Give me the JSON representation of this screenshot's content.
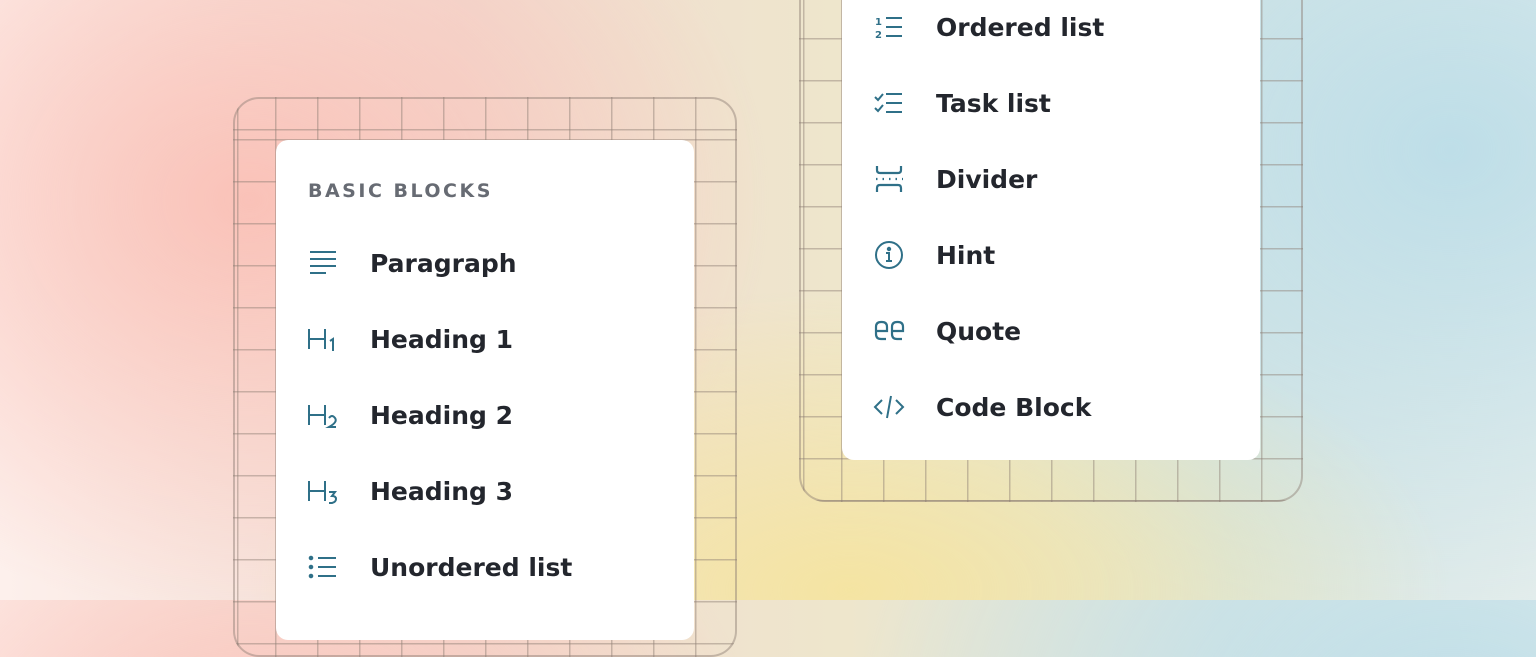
{
  "left_menu": {
    "section_heading": "BASIC BLOCKS",
    "items": [
      {
        "label": "Paragraph",
        "icon": "paragraph-icon"
      },
      {
        "label": "Heading 1",
        "icon": "heading-1-icon"
      },
      {
        "label": "Heading 2",
        "icon": "heading-2-icon"
      },
      {
        "label": "Heading 3",
        "icon": "heading-3-icon"
      },
      {
        "label": "Unordered list",
        "icon": "unordered-list-icon"
      }
    ]
  },
  "right_menu": {
    "items": [
      {
        "label": "Ordered list",
        "icon": "ordered-list-icon"
      },
      {
        "label": "Task list",
        "icon": "task-list-icon"
      },
      {
        "label": "Divider",
        "icon": "divider-icon"
      },
      {
        "label": "Hint",
        "icon": "info-icon"
      },
      {
        "label": "Quote",
        "icon": "quote-icon"
      },
      {
        "label": "Code Block",
        "icon": "code-icon"
      }
    ]
  },
  "colors": {
    "icon": "#2f7088",
    "text": "#23262d",
    "heading": "#676b73"
  }
}
